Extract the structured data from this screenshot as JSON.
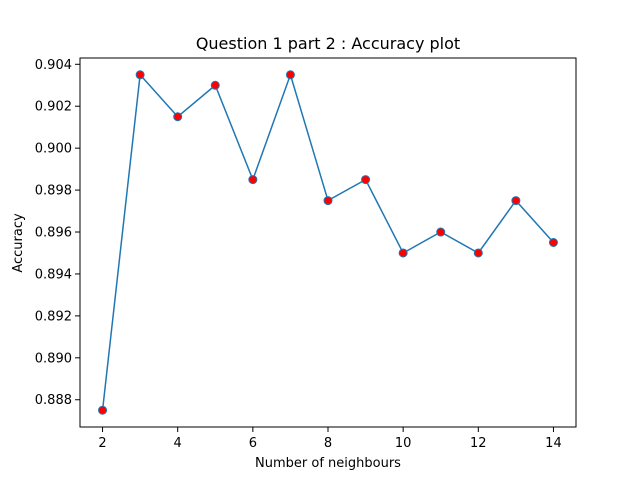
{
  "chart_data": {
    "type": "line",
    "title": "Question 1 part 2 : Accuracy plot",
    "xlabel": "Number of neighbours",
    "ylabel": "Accuracy",
    "x": [
      2,
      3,
      4,
      5,
      6,
      7,
      8,
      9,
      10,
      11,
      12,
      13,
      14
    ],
    "series": [
      {
        "values": [
          0.8875,
          0.9035,
          0.9015,
          0.903,
          0.8985,
          0.9035,
          0.8975,
          0.8985,
          0.895,
          0.896,
          0.895,
          0.8975,
          0.8955
        ]
      }
    ],
    "xlim": [
      1.4,
      14.6
    ],
    "ylim": [
      0.8867,
      0.9043
    ],
    "xticks": [
      "2",
      "4",
      "6",
      "8",
      "10",
      "12",
      "14"
    ],
    "yticks": [
      "0.888",
      "0.890",
      "0.892",
      "0.894",
      "0.896",
      "0.898",
      "0.900",
      "0.902",
      "0.904"
    ],
    "grid": false,
    "colors": {
      "line": "#1f77b4",
      "marker_fill": "#ff0000",
      "marker_edge": "#1f77b4"
    }
  }
}
